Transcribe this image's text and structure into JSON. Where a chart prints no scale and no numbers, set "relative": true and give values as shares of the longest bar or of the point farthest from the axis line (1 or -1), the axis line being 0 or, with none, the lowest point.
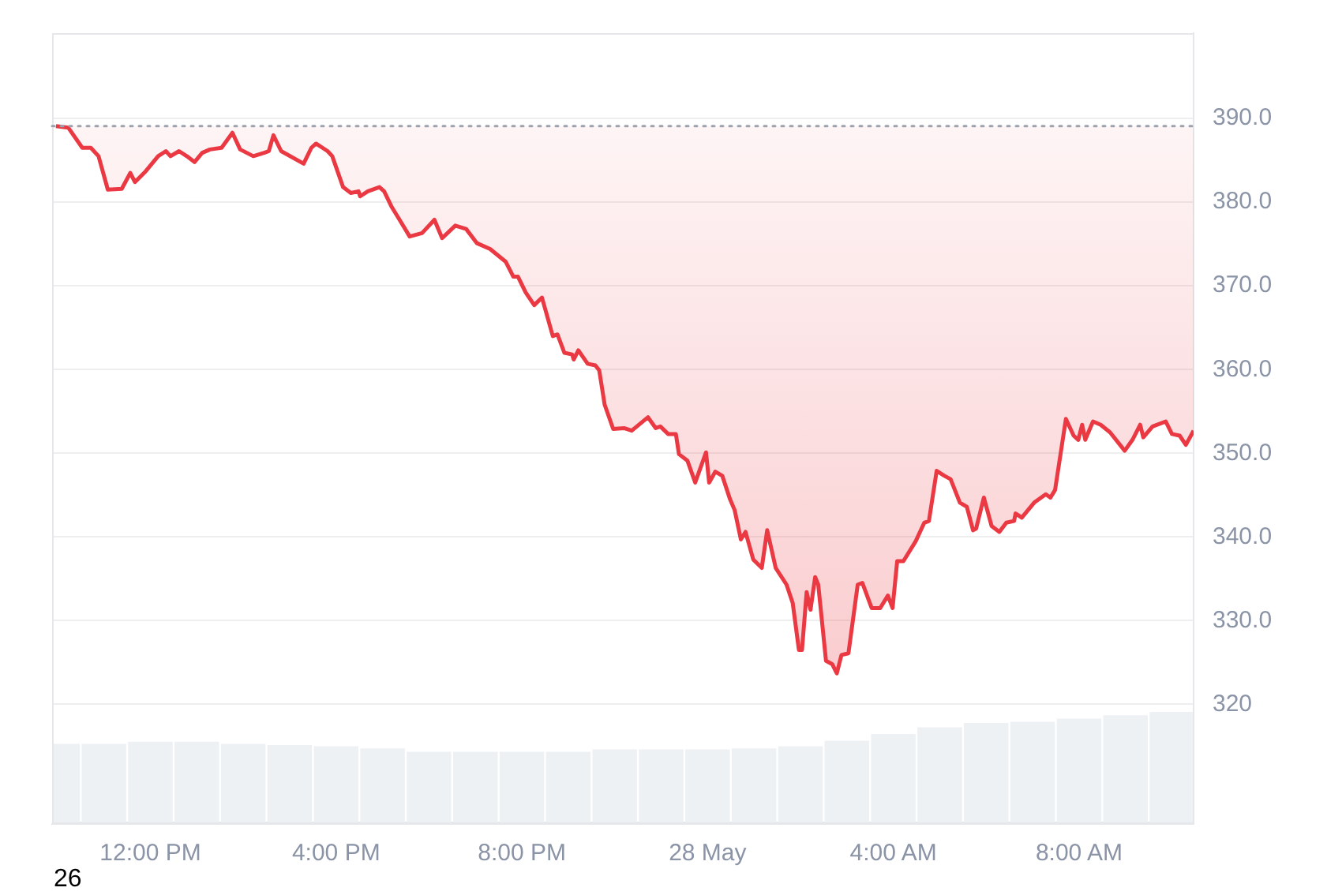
{
  "chart_data": [
    {
      "type": "line",
      "x": [
        "--05-27T09:58",
        "--05-27T10:14",
        "--05-27T10:32",
        "--05-27T10:43",
        "--05-27T10:53",
        "--05-27T11:05",
        "--05-27T11:23",
        "--05-27T11:34",
        "--05-27T11:40",
        "--05-27T11:54",
        "--05-27T12:10",
        "--05-27T12:20",
        "--05-27T12:26",
        "--05-27T12:37",
        "--05-27T12:47",
        "--05-27T12:57",
        "--05-27T13:07",
        "--05-27T13:17",
        "--05-27T13:32",
        "--05-27T13:46",
        "--05-27T13:56",
        "--05-27T14:13",
        "--05-27T14:27",
        "--05-27T14:33",
        "--05-27T14:39",
        "--05-27T14:49",
        "--05-27T15:18",
        "--05-27T15:28",
        "--05-27T15:34",
        "--05-27T15:49",
        "--05-27T15:55",
        "--05-27T16:09",
        "--05-27T16:19",
        "--05-27T16:29",
        "--05-27T16:31",
        "--05-27T16:41",
        "--05-27T16:56",
        "--05-27T17:02",
        "--05-27T17:12",
        "--05-27T17:22",
        "--05-27T17:35",
        "--05-27T17:51",
        "--05-27T18:07",
        "--05-27T18:17",
        "--05-27T18:34",
        "--05-27T18:48",
        "--05-27T19:02",
        "--05-27T19:19",
        "--05-27T19:39",
        "--05-27T19:49",
        "--05-27T19:55",
        "--05-27T20:05",
        "--05-27T20:16",
        "--05-27T20:26",
        "--05-27T20:40",
        "--05-27T20:46",
        "--05-27T20:55",
        "--05-27T21:05",
        "--05-27T21:07",
        "--05-27T21:13",
        "--05-27T21:25",
        "--05-27T21:35",
        "--05-27T21:40",
        "--05-27T21:47",
        "--05-27T21:58",
        "--05-27T22:12",
        "--05-27T22:22",
        "--05-27T22:43",
        "--05-27T22:53",
        "--05-27T22:59",
        "--05-27T23:09",
        "--05-27T23:19",
        "--05-27T23:23",
        "--05-27T23:34",
        "--05-27T23:44",
        "--05-27T23:58",
        "--05-28T00:02",
        "--05-28T00:10",
        "--05-28T00:19",
        "--05-28T00:29",
        "--05-28T00:35",
        "--05-28T00:43",
        "--05-28T00:49",
        "--05-28T00:59",
        "--05-28T01:10",
        "--05-28T01:17",
        "--05-28T01:28",
        "--05-28T01:42",
        "--05-28T01:50",
        "--05-28T01:58",
        "--05-28T02:02",
        "--05-28T02:08",
        "--05-28T02:13",
        "--05-28T02:19",
        "--05-28T02:23",
        "--05-28T02:33",
        "--05-28T02:41",
        "--05-28T02:47",
        "--05-28T02:53",
        "--05-28T03:02",
        "--05-28T03:14",
        "--05-28T03:20",
        "--05-28T03:24",
        "--05-28T03:32",
        "--05-28T03:43",
        "--05-28T03:53",
        "--05-28T03:59",
        "--05-28T04:05",
        "--05-28T04:13",
        "--05-28T04:29",
        "--05-28T04:40",
        "--05-28T04:46",
        "--05-28T04:56",
        "--05-28T05:06",
        "--05-28T05:14",
        "--05-28T05:26",
        "--05-28T05:35",
        "--05-28T05:43",
        "--05-28T05:47",
        "--05-28T05:57",
        "--05-28T06:07",
        "--05-28T06:17",
        "--05-28T06:26",
        "--05-28T06:36",
        "--05-28T06:38",
        "--05-28T06:46",
        "--05-28T07:02",
        "--05-28T07:17",
        "--05-28T07:23",
        "--05-28T07:29",
        "--05-28T07:43",
        "--05-28T07:53",
        "--05-28T07:59",
        "--05-28T08:04",
        "--05-28T08:08",
        "--05-28T08:18",
        "--05-28T08:28",
        "--05-28T08:40",
        "--05-28T08:59",
        "--05-28T09:09",
        "--05-28T09:19",
        "--05-28T09:23",
        "--05-28T09:35",
        "--05-28T09:52",
        "--05-28T10:00",
        "--05-28T10:10",
        "--05-28T10:18",
        "--05-28T10:28"
      ],
      "series": [
        {
          "color": "#ea3943",
          "values": [
            389.1,
            388.9,
            386.5,
            386.5,
            385.5,
            381.5,
            381.6,
            383.5,
            382.4,
            383.7,
            385.5,
            386.1,
            385.5,
            386.1,
            385.5,
            384.8,
            385.9,
            386.3,
            386.5,
            388.3,
            386.3,
            385.5,
            385.9,
            386.1,
            388.0,
            386.1,
            384.6,
            386.5,
            387.0,
            386.1,
            385.5,
            381.8,
            381.1,
            381.3,
            380.7,
            381.3,
            381.8,
            381.3,
            379.4,
            377.9,
            375.9,
            376.3,
            377.9,
            375.7,
            377.2,
            376.8,
            375.1,
            374.4,
            372.9,
            371.1,
            371.1,
            369.2,
            367.7,
            368.6,
            364.0,
            364.2,
            362.0,
            361.8,
            361.2,
            362.3,
            360.7,
            360.5,
            359.9,
            355.8,
            352.9,
            353.0,
            352.7,
            354.3,
            353.0,
            353.2,
            352.3,
            352.3,
            349.9,
            349.1,
            346.5,
            350.1,
            346.5,
            347.8,
            347.3,
            344.5,
            343.2,
            339.7,
            340.6,
            337.3,
            336.3,
            340.8,
            336.3,
            334.3,
            332.1,
            326.5,
            326.5,
            333.4,
            331.3,
            335.2,
            334.3,
            325.2,
            324.8,
            323.7,
            325.9,
            326.1,
            334.3,
            334.5,
            333.5,
            331.5,
            331.5,
            333.0,
            331.5,
            337.1,
            337.1,
            339.5,
            341.7,
            341.9,
            347.9,
            347.3,
            346.9,
            344.1,
            343.6,
            340.8,
            341.0,
            344.7,
            341.3,
            340.6,
            341.7,
            341.9,
            342.8,
            342.3,
            344.1,
            345.1,
            344.7,
            345.6,
            354.1,
            352.1,
            351.6,
            353.4,
            351.6,
            353.8,
            353.4,
            352.5,
            350.3,
            351.6,
            353.4,
            351.9,
            353.2,
            353.8,
            352.3,
            352.1,
            351.0,
            352.7
          ]
        }
      ],
      "xlim": [
        "--05-27T09:53",
        "--05-28T10:28"
      ],
      "xticks": [
        {
          "value": "--05-27T12:00",
          "label": "12:00 PM"
        },
        {
          "value": "--05-27T16:00",
          "label": "4:00 PM"
        },
        {
          "value": "--05-27T20:00",
          "label": "8:00 PM"
        },
        {
          "value": "--05-28T00:00",
          "label": "28 May"
        },
        {
          "value": "--05-28T04:00",
          "label": "4:00 AM"
        },
        {
          "value": "--05-28T08:00",
          "label": "8:00 AM"
        }
      ],
      "ylim": [
        305.7,
        400.2
      ],
      "yticks": [
        {
          "value": 320,
          "label": "320"
        },
        {
          "value": 330,
          "label": "330.0"
        },
        {
          "value": 340,
          "label": "340.0"
        },
        {
          "value": 350,
          "label": "350.0"
        },
        {
          "value": 360,
          "label": "360.0"
        },
        {
          "value": 370,
          "label": "370.0"
        },
        {
          "value": 380,
          "label": "380.0"
        },
        {
          "value": 390,
          "label": "390.0"
        }
      ],
      "ref_lines": [
        {
          "axis": "y",
          "value": 389.1,
          "color": "#9ca3af",
          "line_style": "dotted"
        }
      ],
      "annotations": [
        "26"
      ],
      "grid": "y",
      "marker": "none",
      "line_style": "solid"
    },
    {
      "type": "bar",
      "relative": true,
      "color": "#eef1f4",
      "x": [
        "--05-27T10:00",
        "--05-27T11:00",
        "--05-27T12:00",
        "--05-27T13:00",
        "--05-27T14:00",
        "--05-27T15:00",
        "--05-27T16:00",
        "--05-27T17:00",
        "--05-27T18:00",
        "--05-27T19:00",
        "--05-27T20:00",
        "--05-27T21:00",
        "--05-27T22:00",
        "--05-27T23:00",
        "--05-28T00:00",
        "--05-28T01:00",
        "--05-28T02:00",
        "--05-28T03:00",
        "--05-28T04:00",
        "--05-28T05:00",
        "--05-28T06:00",
        "--05-28T07:00",
        "--05-28T08:00",
        "--05-28T09:00",
        "--05-28T10:00"
      ],
      "values": [
        0.71,
        0.71,
        0.73,
        0.73,
        0.71,
        0.7,
        0.69,
        0.67,
        0.64,
        0.64,
        0.64,
        0.64,
        0.66,
        0.66,
        0.66,
        0.67,
        0.69,
        0.74,
        0.8,
        0.86,
        0.9,
        0.91,
        0.94,
        0.97,
        1
      ],
      "xlim": [
        "--05-27T09:53",
        "--05-28T10:28"
      ]
    }
  ]
}
